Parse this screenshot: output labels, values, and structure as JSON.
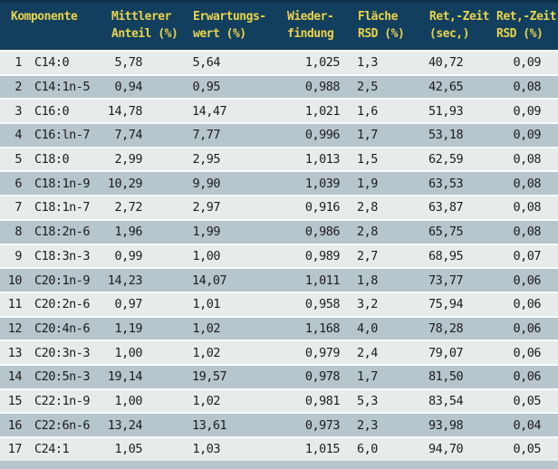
{
  "colors": {
    "header_bg": "#133f5f",
    "header_top_edge": "#0d3049",
    "header_text": "#e9d44a",
    "row_light": "#e7ebec",
    "row_dark": "#b7c5cc",
    "row_separator": "#fafbfb",
    "cell_text": "#1d1d1d"
  },
  "table": {
    "columns": [
      {
        "line1": "Komponente",
        "line2": ""
      },
      {
        "line1": "Mittlerer",
        "line2": "Anteil (%)"
      },
      {
        "line1": "Erwartungs-",
        "line2": "wert (%)"
      },
      {
        "line1": "Wieder-",
        "line2": "findung"
      },
      {
        "line1": "Fläche",
        "line2": "RSD (%)"
      },
      {
        "line1": "Ret,-Zeit",
        "line2": "(sec,)"
      },
      {
        "line1": "Ret,-Zeit",
        "line2": "RSD (%)"
      }
    ],
    "rows": [
      {
        "num": "1",
        "komponente": "C14:0",
        "mittlerer_anteil": "5,78",
        "erwartungswert": "5,64",
        "wiederfindung": "1,025",
        "flaeche_rsd": "1,3",
        "ret_zeit": "40,72",
        "ret_zeit_rsd": "0,09"
      },
      {
        "num": "2",
        "komponente": "C14:1n-5",
        "mittlerer_anteil": "0,94",
        "erwartungswert": "0,95",
        "wiederfindung": "0,988",
        "flaeche_rsd": "2,5",
        "ret_zeit": "42,65",
        "ret_zeit_rsd": "0,08"
      },
      {
        "num": "3",
        "komponente": "C16:0",
        "mittlerer_anteil": "14,78",
        "erwartungswert": "14,47",
        "wiederfindung": "1,021",
        "flaeche_rsd": "1,6",
        "ret_zeit": "51,93",
        "ret_zeit_rsd": "0,09"
      },
      {
        "num": "4",
        "komponente": "C16:ln-7",
        "mittlerer_anteil": "7,74",
        "erwartungswert": "7,77",
        "wiederfindung": "0,996",
        "flaeche_rsd": "1,7",
        "ret_zeit": "53,18",
        "ret_zeit_rsd": "0,09"
      },
      {
        "num": "5",
        "komponente": "C18:0",
        "mittlerer_anteil": "2,99",
        "erwartungswert": "2,95",
        "wiederfindung": "1,013",
        "flaeche_rsd": "1,5",
        "ret_zeit": "62,59",
        "ret_zeit_rsd": "0,08"
      },
      {
        "num": "6",
        "komponente": "C18:1n-9",
        "mittlerer_anteil": "10,29",
        "erwartungswert": "9,90",
        "wiederfindung": "1,039",
        "flaeche_rsd": "1,9",
        "ret_zeit": "63,53",
        "ret_zeit_rsd": "0,08"
      },
      {
        "num": "7",
        "komponente": "C18:1n-7",
        "mittlerer_anteil": "2,72",
        "erwartungswert": "2,97",
        "wiederfindung": "0,916",
        "flaeche_rsd": "2,8",
        "ret_zeit": "63,87",
        "ret_zeit_rsd": "0,08"
      },
      {
        "num": "8",
        "komponente": "C18:2n-6",
        "mittlerer_anteil": "1,96",
        "erwartungswert": "1,99",
        "wiederfindung": "0,986",
        "flaeche_rsd": "2,8",
        "ret_zeit": "65,75",
        "ret_zeit_rsd": "0,08"
      },
      {
        "num": "9",
        "komponente": "C18:3n-3",
        "mittlerer_anteil": "0,99",
        "erwartungswert": "1,00",
        "wiederfindung": "0,989",
        "flaeche_rsd": "2,7",
        "ret_zeit": "68,95",
        "ret_zeit_rsd": "0,07"
      },
      {
        "num": "10",
        "komponente": "C20:1n-9",
        "mittlerer_anteil": "14,23",
        "erwartungswert": "14,07",
        "wiederfindung": "1,011",
        "flaeche_rsd": "1,8",
        "ret_zeit": "73,77",
        "ret_zeit_rsd": "0,06"
      },
      {
        "num": "11",
        "komponente": "C20:2n-6",
        "mittlerer_anteil": "0,97",
        "erwartungswert": "1,01",
        "wiederfindung": "0,958",
        "flaeche_rsd": "3,2",
        "ret_zeit": "75,94",
        "ret_zeit_rsd": "0,06"
      },
      {
        "num": "12",
        "komponente": "C20:4n-6",
        "mittlerer_anteil": "1,19",
        "erwartungswert": "1,02",
        "wiederfindung": "1,168",
        "flaeche_rsd": "4,0",
        "ret_zeit": "78,28",
        "ret_zeit_rsd": "0,06"
      },
      {
        "num": "13",
        "komponente": "C20:3n-3",
        "mittlerer_anteil": "1,00",
        "erwartungswert": "1,02",
        "wiederfindung": "0,979",
        "flaeche_rsd": "2,4",
        "ret_zeit": "79,07",
        "ret_zeit_rsd": "0,06"
      },
      {
        "num": "14",
        "komponente": "C20:5n-3",
        "mittlerer_anteil": "19,14",
        "erwartungswert": "19,57",
        "wiederfindung": "0,978",
        "flaeche_rsd": "1,7",
        "ret_zeit": "81,50",
        "ret_zeit_rsd": "0,06"
      },
      {
        "num": "15",
        "komponente": "C22:1n-9",
        "mittlerer_anteil": "1,00",
        "erwartungswert": "1,02",
        "wiederfindung": "0,981",
        "flaeche_rsd": "5,3",
        "ret_zeit": "83,54",
        "ret_zeit_rsd": "0,05"
      },
      {
        "num": "16",
        "komponente": "C22:6n-6",
        "mittlerer_anteil": "13,24",
        "erwartungswert": "13,61",
        "wiederfindung": "0,973",
        "flaeche_rsd": "2,3",
        "ret_zeit": "93,98",
        "ret_zeit_rsd": "0,04"
      },
      {
        "num": "17",
        "komponente": "C24:1",
        "mittlerer_anteil": "1,05",
        "erwartungswert": "1,03",
        "wiederfindung": "1,015",
        "flaeche_rsd": "6,0",
        "ret_zeit": "94,70",
        "ret_zeit_rsd": "0,05"
      }
    ]
  }
}
